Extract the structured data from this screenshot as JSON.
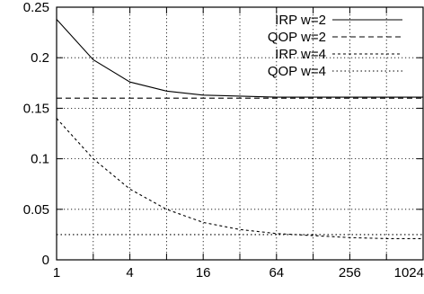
{
  "chart_data": {
    "type": "line",
    "title": "",
    "xlabel": "",
    "ylabel": "",
    "x_scale": "log2",
    "xlim": [
      1,
      1024
    ],
    "ylim": [
      0,
      0.25
    ],
    "x_ticks": [
      1,
      4,
      16,
      64,
      256,
      1024
    ],
    "x_tick_labels": [
      "1",
      "4",
      "16",
      "64",
      "256",
      "1024"
    ],
    "x_grid": [
      1,
      2,
      4,
      8,
      16,
      32,
      64,
      128,
      256,
      512,
      1024
    ],
    "y_ticks": [
      0,
      0.05,
      0.1,
      0.15,
      0.2,
      0.25
    ],
    "y_tick_labels": [
      "0",
      "0.05",
      "0.1",
      "0.15",
      "0.2",
      "0.25"
    ],
    "grid": true,
    "legend_position": "top-right",
    "series": [
      {
        "name": "IRP w=2",
        "line_style": "solid",
        "x": [
          1,
          2,
          4,
          8,
          16,
          32,
          64,
          128,
          256,
          512,
          1024
        ],
        "y": [
          0.238,
          0.198,
          0.176,
          0.167,
          0.163,
          0.162,
          0.161,
          0.161,
          0.161,
          0.161,
          0.161
        ]
      },
      {
        "name": "QOP w=2",
        "line_style": "dashed",
        "x": [
          1,
          1024
        ],
        "y": [
          0.16,
          0.16
        ]
      },
      {
        "name": "IRP w=4",
        "line_style": "short-dashed",
        "x": [
          1,
          2,
          4,
          8,
          16,
          32,
          64,
          128,
          256,
          512,
          1024
        ],
        "y": [
          0.14,
          0.1,
          0.07,
          0.05,
          0.037,
          0.03,
          0.026,
          0.024,
          0.022,
          0.021,
          0.021
        ]
      },
      {
        "name": "QOP w=4",
        "line_style": "dotted",
        "x": [
          1,
          1024
        ],
        "y": [
          0.025,
          0.025
        ]
      }
    ]
  }
}
